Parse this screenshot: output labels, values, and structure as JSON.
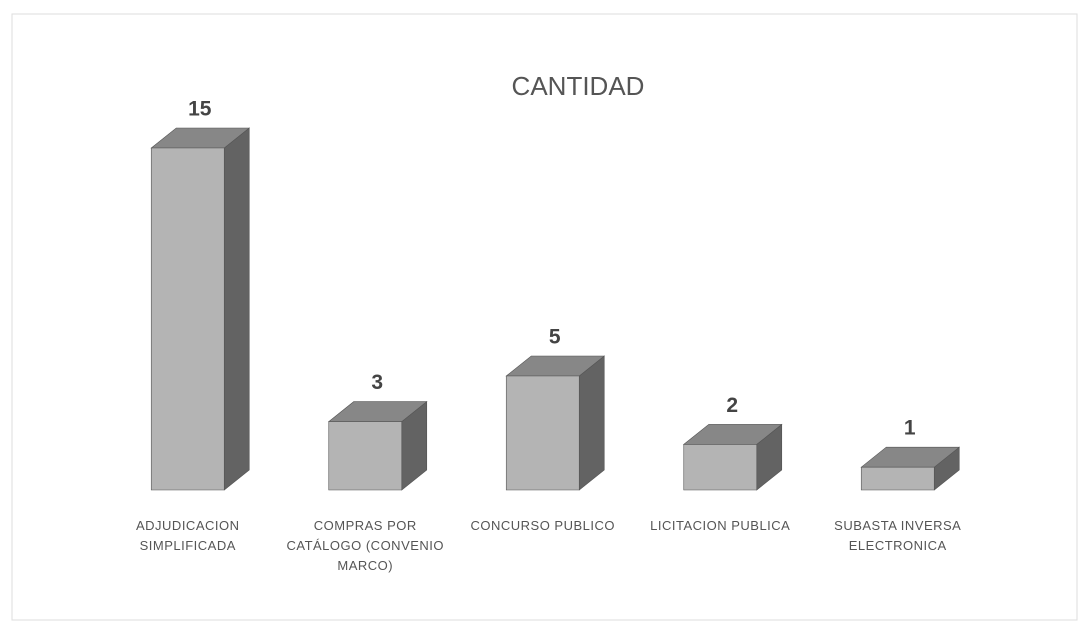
{
  "chart_data": {
    "type": "bar3d",
    "title": "CANTIDAD",
    "categories": [
      "ADJUDICACION SIMPLIFICADA",
      "COMPRAS POR CATÁLOGO (CONVENIO MARCO)",
      "CONCURSO PUBLICO",
      "LICITACION PUBLICA",
      "SUBASTA INVERSA ELECTRONICA"
    ],
    "values": [
      15,
      3,
      5,
      2,
      1
    ],
    "color": "#b4b4b4"
  }
}
